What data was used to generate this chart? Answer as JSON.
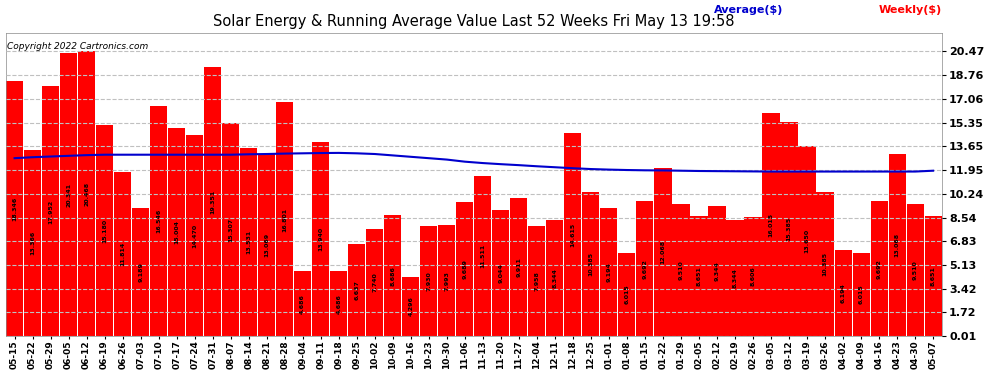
{
  "title": "Solar Energy & Running Average Value Last 52 Weeks Fri May 13 19:58",
  "copyright": "Copyright 2022 Cartronics.com",
  "legend_avg": "Average($)",
  "legend_weekly": "Weekly($)",
  "bar_color": "#ff0000",
  "avg_line_color": "#0000cd",
  "background_color": "#ffffff",
  "plot_bg_color": "#ffffff",
  "grid_color": "#c0c0c0",
  "categories": [
    "05-15",
    "05-22",
    "05-29",
    "06-05",
    "06-12",
    "06-19",
    "06-26",
    "07-03",
    "07-10",
    "07-17",
    "07-24",
    "07-31",
    "08-07",
    "08-14",
    "08-21",
    "08-28",
    "09-04",
    "09-11",
    "09-18",
    "09-25",
    "10-02",
    "10-09",
    "10-16",
    "10-23",
    "10-30",
    "11-06",
    "11-13",
    "11-20",
    "11-27",
    "12-04",
    "12-11",
    "12-18",
    "12-25",
    "01-01",
    "01-08",
    "01-15",
    "01-22",
    "01-29",
    "02-05",
    "02-12",
    "02-19",
    "02-26",
    "03-05",
    "03-12",
    "03-19",
    "03-26",
    "04-02",
    "04-09",
    "04-16",
    "04-23",
    "04-30",
    "05-07"
  ],
  "weekly_values": [
    18.346,
    13.366,
    17.952,
    20.341,
    20.468,
    15.18,
    11.814,
    9.189,
    16.546,
    15.004,
    14.47,
    19.351,
    15.307,
    13.531,
    13.069,
    16.801,
    4.686,
    13.94,
    4.686,
    6.637,
    7.74,
    8.686,
    4.296,
    7.93,
    7.993,
    9.689,
    11.511,
    9.044,
    9.911,
    7.958,
    8.344,
    14.615,
    10.385,
    9.194,
    6.015,
    9.692,
    12.068,
    9.51,
    8.651,
    9.344,
    8.344,
    8.606,
    16.015,
    15.385,
    13.65,
    10.385,
    6.194,
    6.015,
    9.692,
    13.068,
    9.51,
    8.651
  ],
  "avg_values": [
    12.8,
    12.87,
    12.92,
    12.97,
    13.02,
    13.05,
    13.05,
    13.05,
    13.05,
    13.05,
    13.05,
    13.05,
    13.05,
    13.08,
    13.1,
    13.13,
    13.15,
    13.17,
    13.18,
    13.15,
    13.1,
    13.0,
    12.9,
    12.8,
    12.7,
    12.55,
    12.45,
    12.37,
    12.3,
    12.22,
    12.15,
    12.08,
    12.02,
    11.98,
    11.95,
    11.93,
    11.92,
    11.9,
    11.88,
    11.87,
    11.86,
    11.85,
    11.84,
    11.84,
    11.84,
    11.84,
    11.84,
    11.84,
    11.84,
    11.84,
    11.84,
    11.9
  ],
  "yticks": [
    0.01,
    1.72,
    3.42,
    5.13,
    6.83,
    8.54,
    10.24,
    11.95,
    13.65,
    15.35,
    17.06,
    18.76,
    20.47
  ],
  "ylim": [
    0.0,
    21.8
  ],
  "figwidth": 9.9,
  "figheight": 3.75,
  "dpi": 100
}
